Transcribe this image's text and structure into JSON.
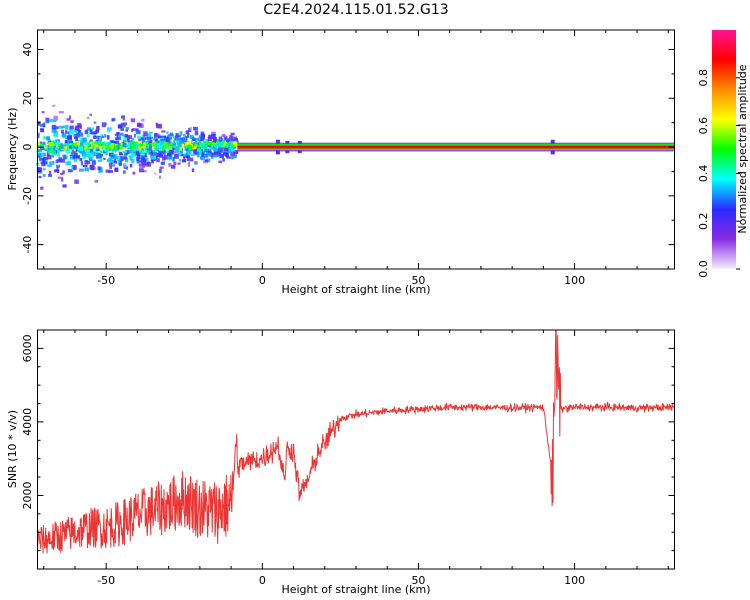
{
  "title": "C2E4.2024.115.01.52.G13",
  "chart_data": [
    {
      "type": "heatmap",
      "xlabel": "Height of straight line (km)",
      "ylabel": "Frequency (Hz)",
      "xlim": [
        -72,
        132
      ],
      "ylim": [
        -50,
        48
      ],
      "xticks": [
        -50,
        0,
        50,
        100
      ],
      "yticks": [
        -40,
        -20,
        0,
        20,
        40
      ],
      "colorbar": {
        "label": "Normalized spectral amplitude",
        "range": [
          0,
          1
        ],
        "ticks": [
          "0.0",
          "0.2",
          "0.4",
          "0.6",
          "0.8"
        ],
        "colormap": [
          "#f5eefe",
          "#8a2be2",
          "#2a2aff",
          "#00ffff",
          "#00ff00",
          "#ffff00",
          "#ff8c00",
          "#ff0000",
          "#ff1493"
        ]
      },
      "features": [
        {
          "x": [
            -72,
            -8
          ],
          "center_hz": 0,
          "spread_hz": 10,
          "amplitude": "low-mid (purple/cyan)"
        },
        {
          "x": [
            -8,
            132
          ],
          "center_hz": 0,
          "spread_hz": 1,
          "amplitude": "high (red line)"
        }
      ]
    },
    {
      "type": "line",
      "xlabel": "Height of straight line (km)",
      "ylabel": "SNR (10 * v/v)",
      "xlim": [
        -72,
        132
      ],
      "ylim": [
        0,
        6500
      ],
      "xticks": [
        -50,
        0,
        50,
        100
      ],
      "yticks": [
        2000,
        4000,
        6000
      ],
      "series": [
        {
          "color": "#ee3333",
          "x": [
            -72,
            -65,
            -60,
            -55,
            -50,
            -45,
            -40,
            -35,
            -30,
            -25,
            -20,
            -15,
            -10,
            -8,
            -5,
            0,
            3,
            5,
            7,
            8,
            10,
            12,
            15,
            18,
            20,
            22,
            25,
            30,
            40,
            50,
            60,
            70,
            80,
            90,
            93,
            94,
            95,
            100,
            110,
            120,
            132
          ],
          "y": [
            600,
            700,
            800,
            900,
            900,
            1000,
            1200,
            1300,
            1400,
            1600,
            1300,
            1200,
            1400,
            2800,
            2900,
            3000,
            3200,
            3400,
            2400,
            3300,
            3200,
            2000,
            2500,
            3200,
            3400,
            3700,
            4100,
            4200,
            4300,
            4350,
            4400,
            4400,
            4380,
            4400,
            2500,
            6400,
            4350,
            4400,
            4400,
            4380,
            4400
          ]
        }
      ]
    }
  ]
}
